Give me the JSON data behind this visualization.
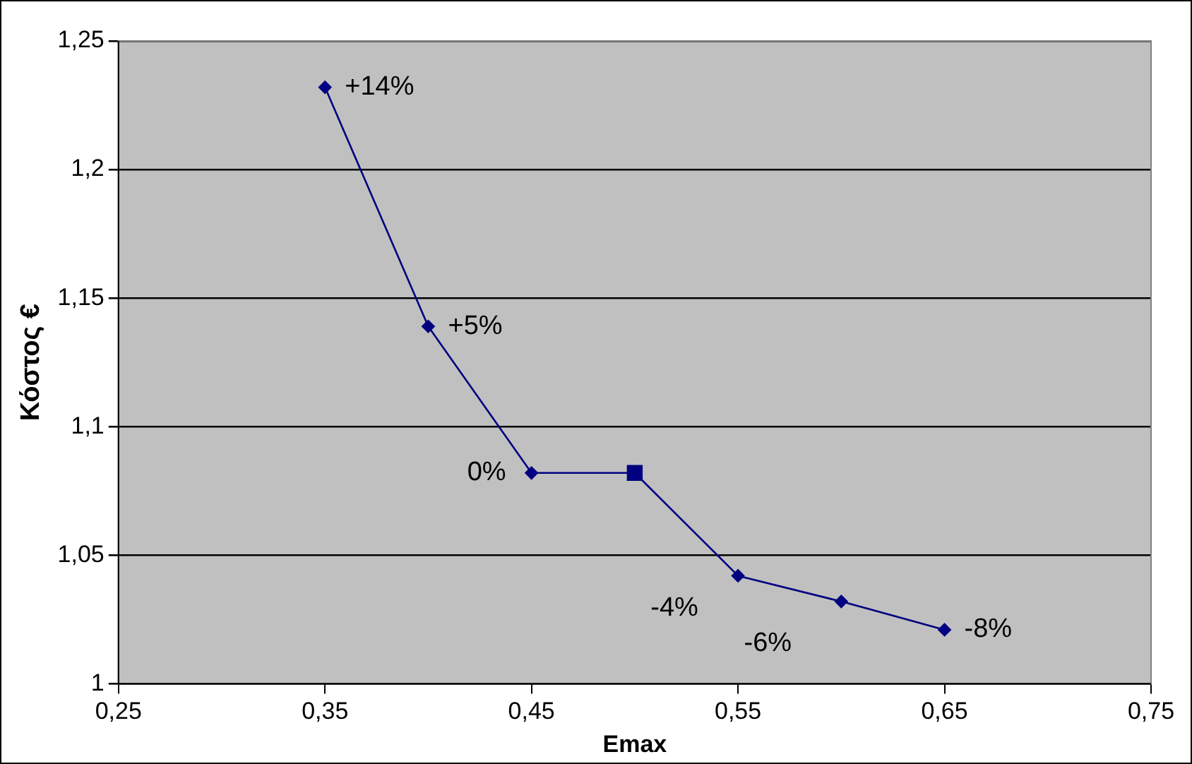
{
  "chart_data": {
    "type": "line",
    "xlabel": "Emax",
    "ylabel": "Κόστος €",
    "series": [
      {
        "color": "#000080",
        "marker": "diamond",
        "x": [
          0.35,
          0.4,
          0.45,
          0.5,
          0.55,
          0.6,
          0.65
        ],
        "values": [
          1.232,
          1.139,
          1.082,
          1.082,
          1.042,
          1.032,
          1.021
        ]
      },
      {
        "type": "scatter",
        "color": "#000080",
        "marker": "square",
        "x": [
          0.5
        ],
        "values": [
          1.082
        ]
      }
    ],
    "xlim": [
      0.25,
      0.75
    ],
    "xticks": [
      {
        "value": 0.25,
        "label": "0,25"
      },
      {
        "value": 0.35,
        "label": "0,35"
      },
      {
        "value": 0.45,
        "label": "0,45"
      },
      {
        "value": 0.55,
        "label": "0,55"
      },
      {
        "value": 0.65,
        "label": "0,65"
      },
      {
        "value": 0.75,
        "label": "0,75"
      }
    ],
    "ylim": [
      1,
      1.25
    ],
    "yticks": [
      1,
      {
        "value": 1.05,
        "label": "1,05"
      },
      {
        "value": 1.1,
        "label": "1,1"
      },
      {
        "value": 1.15,
        "label": "1,15"
      },
      {
        "value": 1.2,
        "label": "1,2"
      },
      {
        "value": 1.25,
        "label": "1,25"
      }
    ],
    "grid": "y",
    "legend": false,
    "annotations": [
      {
        "text": "+14%",
        "x": 0.35,
        "y": 1.232
      },
      {
        "text": "+5%",
        "x": 0.4,
        "y": 1.139
      },
      {
        "text": "0%",
        "x": 0.45,
        "y": 1.082
      },
      {
        "text": "-4%",
        "x": 0.55,
        "y": 1.042
      },
      {
        "text": "-6%",
        "x": 0.6,
        "y": 1.032
      },
      {
        "text": "-8%",
        "x": 0.65,
        "y": 1.021
      }
    ]
  }
}
